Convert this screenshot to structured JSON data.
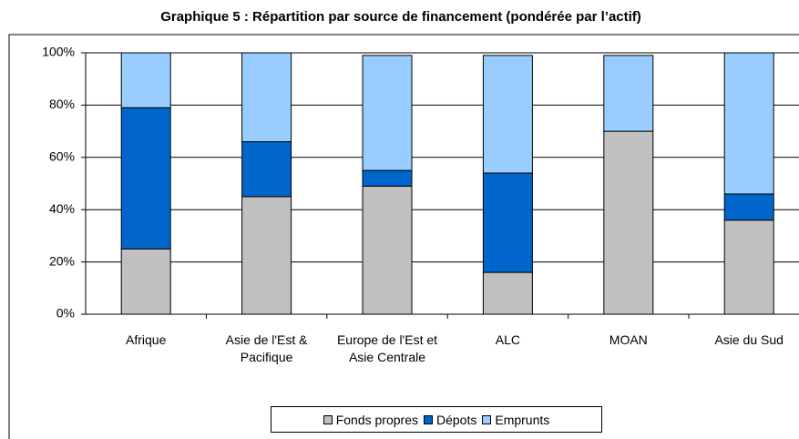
{
  "chart_data": {
    "type": "stacked_bar",
    "title": "Graphique 5 : Répartition par source de financement (pondérée par l’actif)",
    "categories": [
      "Afrique",
      "Asie de l'Est & Pacifique",
      "Europe de l'Est et Asie Centrale",
      "ALC",
      "MOAN",
      "Asie du Sud"
    ],
    "series": [
      {
        "name": "Fonds propres",
        "color": "#c0c0c0",
        "values": [
          25,
          45,
          49,
          16,
          70,
          36
        ]
      },
      {
        "name": "Dépots",
        "color": "#0066cc",
        "values": [
          54,
          21,
          6,
          38,
          0,
          10
        ]
      },
      {
        "name": "Emprunts",
        "color": "#99ccff",
        "values": [
          21,
          34,
          44,
          45,
          29,
          54
        ]
      }
    ],
    "ylim": [
      0,
      100
    ],
    "yticks": [
      {
        "value": 0,
        "label": "0%"
      },
      {
        "value": 20,
        "label": "20%"
      },
      {
        "value": 40,
        "label": "40%"
      },
      {
        "value": 60,
        "label": "60%"
      },
      {
        "value": 80,
        "label": "80%"
      },
      {
        "value": 100,
        "label": "100%"
      }
    ],
    "grid": true,
    "legend": "bottom"
  }
}
